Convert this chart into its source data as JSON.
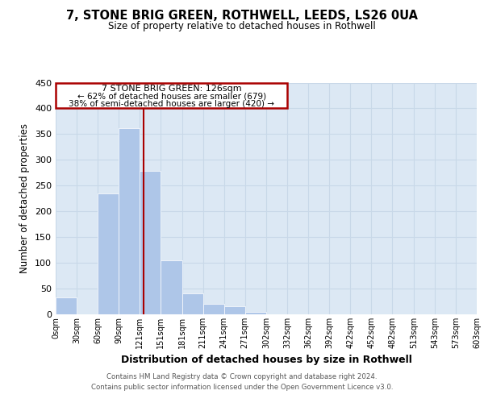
{
  "title": "7, STONE BRIG GREEN, ROTHWELL, LEEDS, LS26 0UA",
  "subtitle": "Size of property relative to detached houses in Rothwell",
  "xlabel": "Distribution of detached houses by size in Rothwell",
  "ylabel": "Number of detached properties",
  "bin_edges": [
    0,
    30,
    60,
    90,
    120,
    150,
    181,
    211,
    241,
    271,
    302,
    332,
    362,
    392,
    422,
    452,
    482,
    513,
    543,
    573,
    603
  ],
  "bar_heights": [
    33,
    0,
    235,
    362,
    278,
    105,
    41,
    20,
    15,
    5,
    0,
    0,
    0,
    0,
    0,
    0,
    0,
    0,
    0,
    0
  ],
  "bar_color": "#aec6e8",
  "bar_edgecolor": "white",
  "grid_color": "#c8d8e8",
  "bg_color": "#dce8f4",
  "property_size": 126,
  "vline_color": "#aa0000",
  "annotation_box_edgecolor": "#aa0000",
  "annotation_lines": [
    "7 STONE BRIG GREEN: 126sqm",
    "← 62% of detached houses are smaller (679)",
    "38% of semi-detached houses are larger (420) →"
  ],
  "ylim": [
    0,
    450
  ],
  "yticks": [
    0,
    50,
    100,
    150,
    200,
    250,
    300,
    350,
    400,
    450
  ],
  "xtick_labels": [
    "0sqm",
    "30sqm",
    "60sqm",
    "90sqm",
    "121sqm",
    "151sqm",
    "181sqm",
    "211sqm",
    "241sqm",
    "271sqm",
    "302sqm",
    "332sqm",
    "362sqm",
    "392sqm",
    "422sqm",
    "452sqm",
    "482sqm",
    "513sqm",
    "543sqm",
    "573sqm",
    "603sqm"
  ],
  "footer_line1": "Contains HM Land Registry data © Crown copyright and database right 2024.",
  "footer_line2": "Contains public sector information licensed under the Open Government Licence v3.0."
}
